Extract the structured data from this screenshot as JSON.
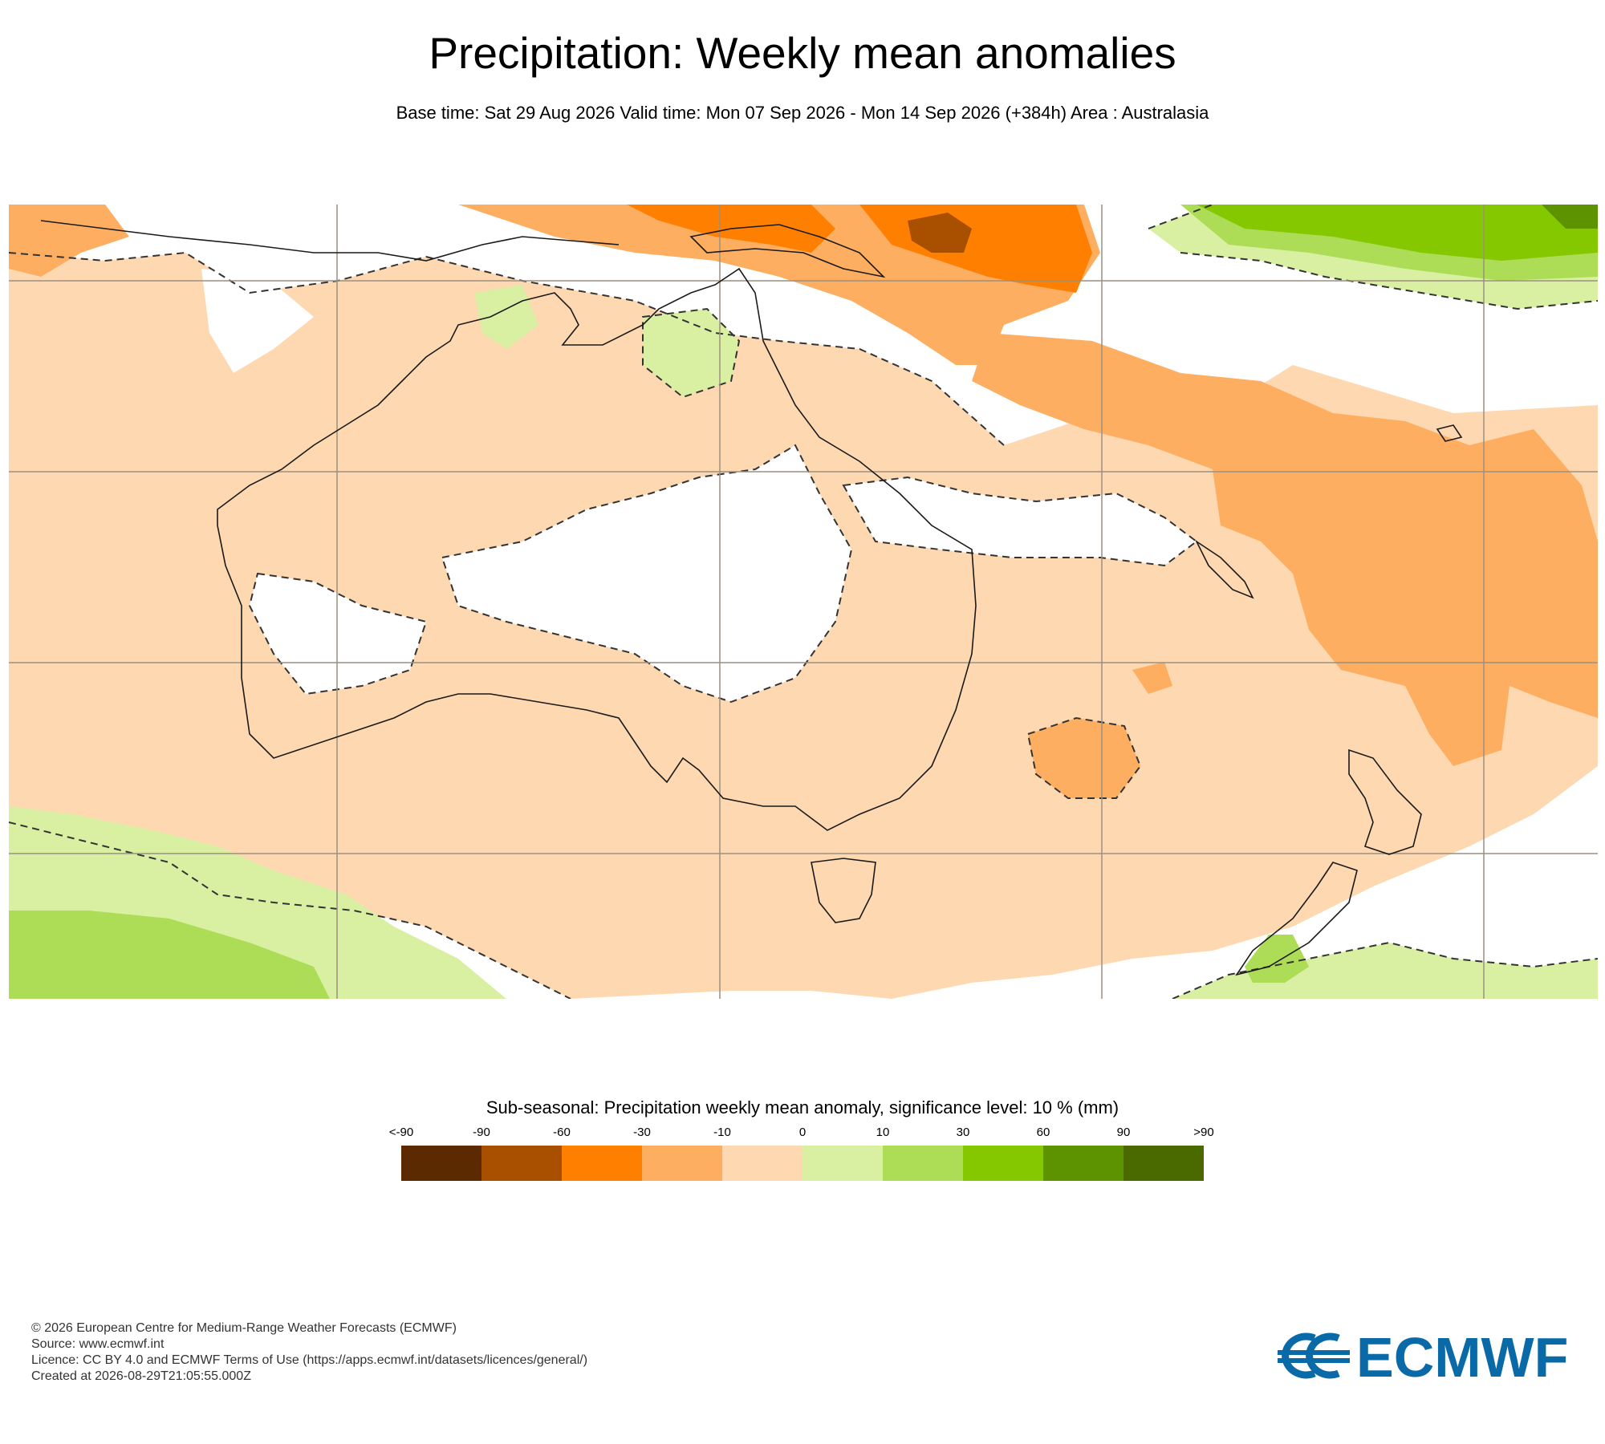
{
  "header": {
    "title": "Precipitation: Weekly mean anomalies",
    "subtitle": "Base time: Sat 29 Aug 2026 Valid time: Mon 07 Sep 2026 - Mon 14 Sep 2026 (+384h) Area : Australasia"
  },
  "map": {
    "area": "Australasia",
    "background_color": "#ffffff",
    "gridline_color": "#9b8f80",
    "coastline_color": "#1a1a1a",
    "significance_contour": "dashed"
  },
  "legend": {
    "title": "Sub-seasonal: Precipitation weekly mean anomaly, significance level: 10 % (mm)",
    "ticks": [
      "<-90",
      "-90",
      "-60",
      "-30",
      "-10",
      "0",
      "10",
      "30",
      "60",
      "90",
      ">90"
    ],
    "colors": [
      "#5c2a00",
      "#a85000",
      "#ff7f00",
      "#fdae61",
      "#fdd8b0",
      "#d9f0a3",
      "#addd57",
      "#86c800",
      "#5e9300",
      "#4a6a00"
    ]
  },
  "footer": {
    "lines": [
      "© 2026 European Centre for Medium-Range Weather Forecasts (ECMWF)",
      "Source: www.ecmwf.int",
      "Licence: CC BY 4.0 and ECMWF Terms of Use (https://apps.ecmwf.int/datasets/licences/general/)",
      "Created at 2026-08-29T21:05:55.000Z"
    ]
  },
  "logo": {
    "text": "ECMWF",
    "color": "#0a6aa8"
  }
}
